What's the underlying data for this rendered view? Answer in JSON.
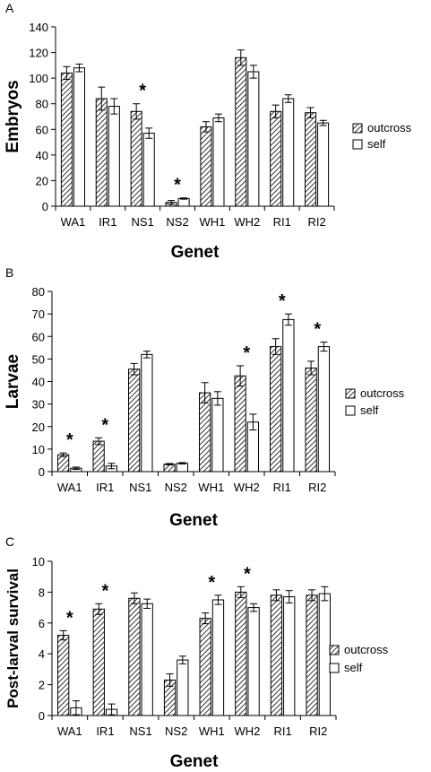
{
  "chart_data": [
    {
      "type": "bar",
      "panel": "A",
      "ylabel": "Embryos",
      "xlabel": "Genet",
      "ylim": [
        0,
        140
      ],
      "yticks": [
        0,
        20,
        40,
        60,
        80,
        100,
        120,
        140
      ],
      "categories": [
        "WA1",
        "IR1",
        "NS1",
        "NS2",
        "WH1",
        "WH2",
        "RI1",
        "RI2"
      ],
      "series": [
        {
          "name": "outcross",
          "pattern": "hatched",
          "values": [
            104,
            84,
            74,
            3,
            62,
            116,
            74,
            73
          ],
          "errors": [
            5,
            9,
            6,
            1.5,
            4,
            6,
            5,
            4
          ]
        },
        {
          "name": "self",
          "pattern": "open",
          "values": [
            108,
            78,
            57,
            6,
            69,
            105,
            84,
            65
          ],
          "errors": [
            3,
            6,
            4,
            0.5,
            3,
            5,
            3,
            2
          ]
        }
      ],
      "significant": [
        false,
        false,
        true,
        true,
        false,
        false,
        false,
        false
      ],
      "significance_marker": "*",
      "legend": "right"
    },
    {
      "type": "bar",
      "panel": "B",
      "ylabel": "Larvae",
      "xlabel": "Genet",
      "ylim": [
        0,
        80
      ],
      "yticks": [
        0,
        10,
        20,
        30,
        40,
        50,
        60,
        70,
        80
      ],
      "categories": [
        "WA1",
        "IR1",
        "NS1",
        "NS2",
        "WH1",
        "WH2",
        "RI1",
        "RI2"
      ],
      "series": [
        {
          "name": "outcross",
          "pattern": "hatched",
          "values": [
            7.5,
            13.5,
            45.5,
            3.3,
            35,
            42.5,
            55.5,
            46
          ],
          "errors": [
            0.8,
            1.5,
            2.5,
            0.3,
            4.5,
            4.5,
            3.5,
            3
          ]
        },
        {
          "name": "self",
          "pattern": "open",
          "values": [
            1.5,
            2.5,
            52,
            3.7,
            32.5,
            22,
            67.5,
            55.5
          ],
          "errors": [
            0.5,
            1.2,
            1.5,
            0.3,
            3,
            3.5,
            2.5,
            2
          ]
        }
      ],
      "significant": [
        true,
        true,
        false,
        false,
        false,
        true,
        true,
        true
      ],
      "significance_marker": "*",
      "legend": "right"
    },
    {
      "type": "bar",
      "panel": "C",
      "ylabel": "Post-larval survival",
      "xlabel": "Genet",
      "ylim": [
        0,
        10
      ],
      "yticks": [
        0,
        2,
        4,
        6,
        8,
        10
      ],
      "categories": [
        "WA1",
        "IR1",
        "NS1",
        "NS2",
        "WH1",
        "WH2",
        "RI1",
        "RI2"
      ],
      "series": [
        {
          "name": "outcross",
          "pattern": "hatched",
          "values": [
            5.2,
            6.9,
            7.6,
            2.3,
            6.3,
            8.0,
            7.8,
            7.8
          ],
          "errors": [
            0.3,
            0.35,
            0.35,
            0.4,
            0.35,
            0.35,
            0.35,
            0.35
          ]
        },
        {
          "name": "self",
          "pattern": "open",
          "values": [
            0.5,
            0.4,
            7.25,
            3.6,
            7.5,
            7.0,
            7.7,
            7.9
          ],
          "errors": [
            0.45,
            0.35,
            0.3,
            0.25,
            0.3,
            0.25,
            0.4,
            0.45
          ]
        }
      ],
      "significant": [
        true,
        true,
        false,
        false,
        true,
        true,
        false,
        false
      ],
      "significance_marker": "*",
      "legend": "right"
    }
  ]
}
